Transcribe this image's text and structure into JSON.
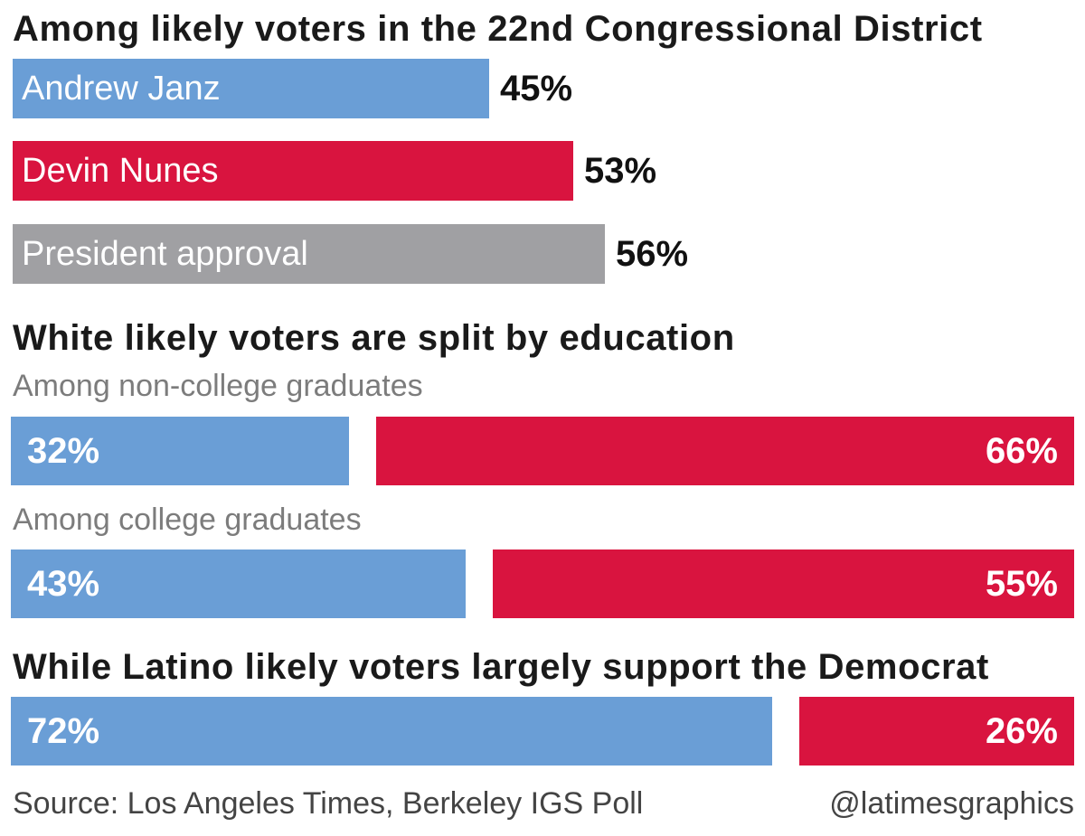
{
  "colors": {
    "democrat": "#6a9ed6",
    "republican": "#d9143f",
    "neutral": "#a0a0a3"
  },
  "chart_data": [
    {
      "type": "bar",
      "title": "Among likely voters in the 22nd Congressional District",
      "categories": [
        "Andrew Janz",
        "Devin Nunes",
        "President approval"
      ],
      "values": [
        45,
        53,
        56
      ],
      "value_labels": [
        "45%",
        "53%",
        "56%"
      ],
      "unit": "%"
    },
    {
      "type": "bar",
      "title": "White likely voters are split by education",
      "groups": [
        {
          "name": "Among non-college graduates",
          "values": [
            32,
            66
          ],
          "value_labels": [
            "32%",
            "66%"
          ]
        },
        {
          "name": "Among college graduates",
          "values": [
            43,
            55
          ],
          "value_labels": [
            "43%",
            "55%"
          ]
        }
      ],
      "unit": "%"
    },
    {
      "type": "bar",
      "title": "While Latino likely voters largely support the Democrat",
      "values": [
        72,
        26
      ],
      "value_labels": [
        "72%",
        "26%"
      ],
      "unit": "%"
    }
  ],
  "footer": {
    "source": "Source: Los Angeles Times, Berkeley IGS Poll",
    "credit": "@latimesgraphics"
  }
}
